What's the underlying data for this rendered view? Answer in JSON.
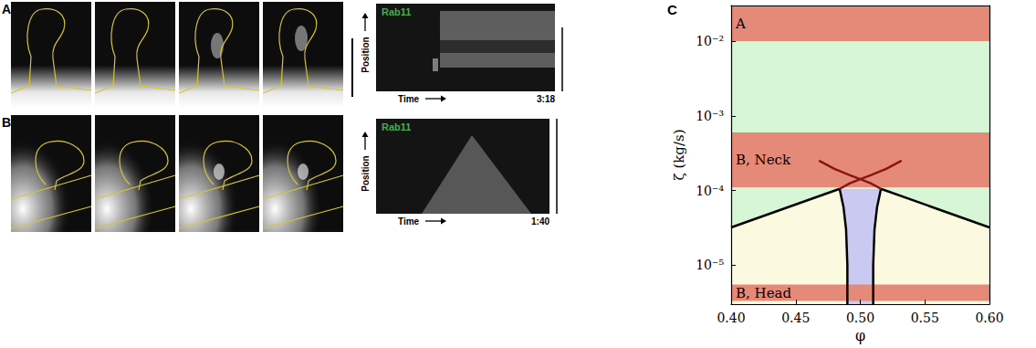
{
  "figure": {
    "panels": [
      {
        "label": "A",
        "kymograph": {
          "title": "Rab11",
          "y_label": "Position",
          "x_label": "Time",
          "duration": "3:18"
        }
      },
      {
        "label": "B",
        "kymograph": {
          "title": "Rab11",
          "y_label": "Position",
          "x_label": "Time",
          "duration": "1:40"
        }
      },
      {
        "label": "C"
      }
    ]
  },
  "chart_data": {
    "type": "region",
    "xlabel": "φ",
    "ylabel": "ζ (kg/s)",
    "log": "y",
    "grid": false,
    "xlim": [
      0.4,
      0.6
    ],
    "xticks": [
      {
        "value": 0.4,
        "label": "0.40"
      },
      0.45,
      {
        "value": 0.5,
        "label": "0.50"
      },
      0.55,
      {
        "value": 0.6,
        "label": "0.60"
      }
    ],
    "ylim": [
      3e-06,
      0.03
    ],
    "yticks": [
      {
        "value": 1e-05,
        "label": "10⁻⁵"
      },
      {
        "value": 0.0001,
        "label": "10⁻⁴"
      },
      {
        "value": 0.001,
        "label": "10⁻³"
      },
      {
        "value": 0.01,
        "label": "10⁻²"
      }
    ],
    "regions": [
      {
        "color": "#d6f6d6",
        "x": [
          0.4,
          0.484,
          0.516,
          0.6,
          0.6,
          0.4
        ],
        "y": [
          3.2e-05,
          0.000105,
          0.000105,
          3.2e-05,
          0.03,
          0.03
        ]
      },
      {
        "color": "#fbf9df",
        "x": [
          0.4,
          0.484,
          0.516,
          0.6,
          0.6,
          0.4
        ],
        "y": [
          3.2e-05,
          0.000105,
          0.000105,
          3.2e-05,
          3e-06,
          3e-06
        ]
      },
      {
        "color": "#c9c9f1",
        "x": [
          0.484,
          0.487,
          0.489,
          0.49,
          0.49,
          0.51,
          0.51,
          0.511,
          0.513,
          0.516
        ],
        "y": [
          0.000105,
          6e-05,
          3e-05,
          1e-05,
          3e-06,
          3e-06,
          1e-05,
          3e-05,
          6e-05,
          0.000105
        ]
      }
    ],
    "bands": [
      {
        "label": "A",
        "range": [
          0.01,
          0.03
        ],
        "color": "#e58a78"
      },
      {
        "label": "B, Neck",
        "range": [
          0.00011,
          0.0006
        ],
        "color": "#e58a78"
      },
      {
        "label": "B, Head",
        "range": [
          3.3e-06,
          5.5e-06
        ],
        "color": "#e58a78"
      }
    ],
    "curves": [
      {
        "color": "#000000",
        "x": [
          0.4,
          0.484
        ],
        "y": [
          3.2e-05,
          0.000105
        ]
      },
      {
        "color": "#000000",
        "x": [
          0.516,
          0.6
        ],
        "y": [
          0.000105,
          3.2e-05
        ]
      },
      {
        "color": "#000000",
        "x": [
          0.484,
          0.487,
          0.489,
          0.49,
          0.49
        ],
        "y": [
          0.000105,
          6e-05,
          3e-05,
          1e-05,
          3e-06
        ]
      },
      {
        "color": "#000000",
        "x": [
          0.516,
          0.513,
          0.511,
          0.51,
          0.51
        ],
        "y": [
          0.000105,
          6e-05,
          3e-05,
          1e-05,
          3e-06
        ]
      },
      {
        "color": "#8b1414",
        "x": [
          0.468,
          0.48,
          0.492,
          0.5,
          0.508,
          0.516
        ],
        "y": [
          0.00025,
          0.000195,
          0.00016,
          0.000142,
          0.000125,
          0.000105
        ]
      },
      {
        "color": "#8b1414",
        "x": [
          0.532,
          0.52,
          0.508,
          0.5,
          0.492,
          0.484
        ],
        "y": [
          0.00025,
          0.000195,
          0.00016,
          0.000142,
          0.000125,
          0.000105
        ]
      }
    ]
  }
}
